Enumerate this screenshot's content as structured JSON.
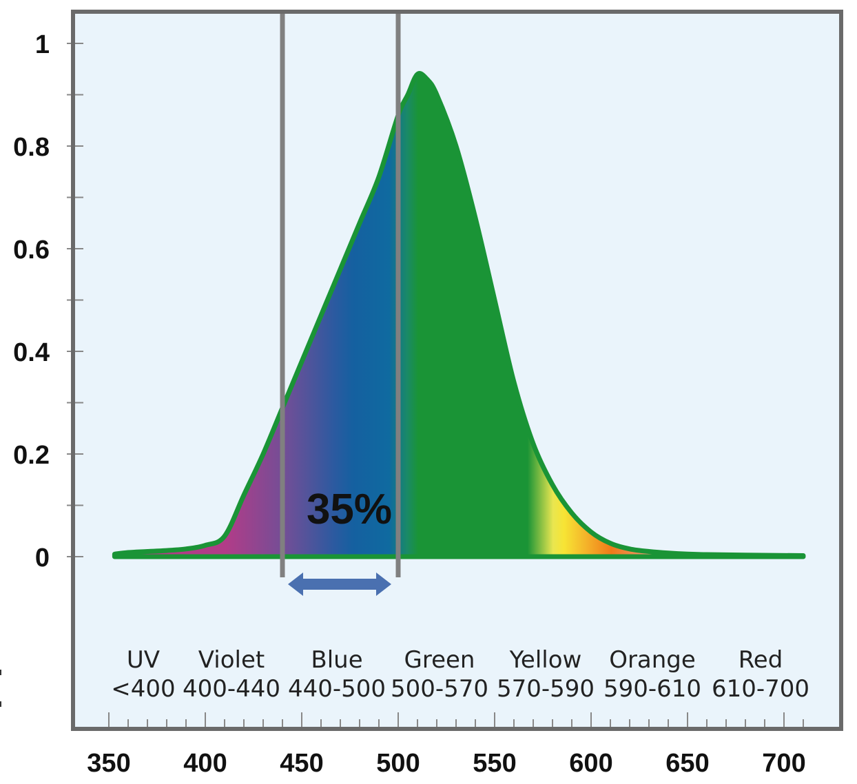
{
  "chart_data": {
    "type": "area",
    "title": "",
    "xlabel": "",
    "ylabel": "",
    "xlim": [
      350,
      710
    ],
    "ylim": [
      0,
      1
    ],
    "grid": false,
    "yticks": [
      {
        "value": 0,
        "label": "0"
      },
      {
        "value": 0.2,
        "label": "0.2"
      },
      {
        "value": 0.4,
        "label": "0.4"
      },
      {
        "value": 0.6,
        "label": "0.6"
      },
      {
        "value": 0.8,
        "label": "0.8"
      },
      {
        "value": 1,
        "label": "1"
      }
    ],
    "xticks": [
      {
        "value": 350,
        "label": "350"
      },
      {
        "value": 400,
        "label": "400"
      },
      {
        "value": 450,
        "label": "450"
      },
      {
        "value": 500,
        "label": "500"
      },
      {
        "value": 550,
        "label": "550"
      },
      {
        "value": 600,
        "label": "600"
      },
      {
        "value": 650,
        "label": "650"
      },
      {
        "value": 700,
        "label": "700"
      }
    ],
    "series": [
      {
        "x": [
          353,
          360,
          370,
          380,
          390,
          400,
          410,
          420,
          430,
          440,
          450,
          460,
          470,
          480,
          490,
          500,
          505,
          510,
          515,
          520,
          530,
          540,
          550,
          560,
          570,
          580,
          590,
          600,
          610,
          620,
          630,
          640,
          650,
          660,
          680,
          710
        ],
        "y": [
          0.005,
          0.008,
          0.01,
          0.012,
          0.015,
          0.022,
          0.04,
          0.12,
          0.2,
          0.29,
          0.38,
          0.47,
          0.56,
          0.65,
          0.74,
          0.86,
          0.9,
          0.94,
          0.93,
          0.9,
          0.8,
          0.66,
          0.5,
          0.34,
          0.22,
          0.14,
          0.085,
          0.048,
          0.026,
          0.015,
          0.01,
          0.007,
          0.005,
          0.004,
          0.003,
          0.002
        ]
      }
    ],
    "colors": {
      "curve": "#1a9436",
      "plot_background": "#eaf4fb",
      "frame": "#6a6a6a",
      "violet": "#b0408a",
      "blue": "#1560a0",
      "yellow": "#f7e434",
      "orange": "#ef7a18",
      "arrow": "#4a70b0"
    },
    "highlight": {
      "range": [
        440,
        500
      ],
      "label": "35%"
    },
    "bands": [
      {
        "name": "UV",
        "range": "<400"
      },
      {
        "name": "Violet",
        "range": "400-440"
      },
      {
        "name": "Blue",
        "range": "440-500"
      },
      {
        "name": "Green",
        "range": "500-570"
      },
      {
        "name": "Yellow",
        "range": "570-590"
      },
      {
        "name": "Orange",
        "range": "590-610"
      },
      {
        "name": "Red",
        "range": "610-700"
      }
    ]
  }
}
